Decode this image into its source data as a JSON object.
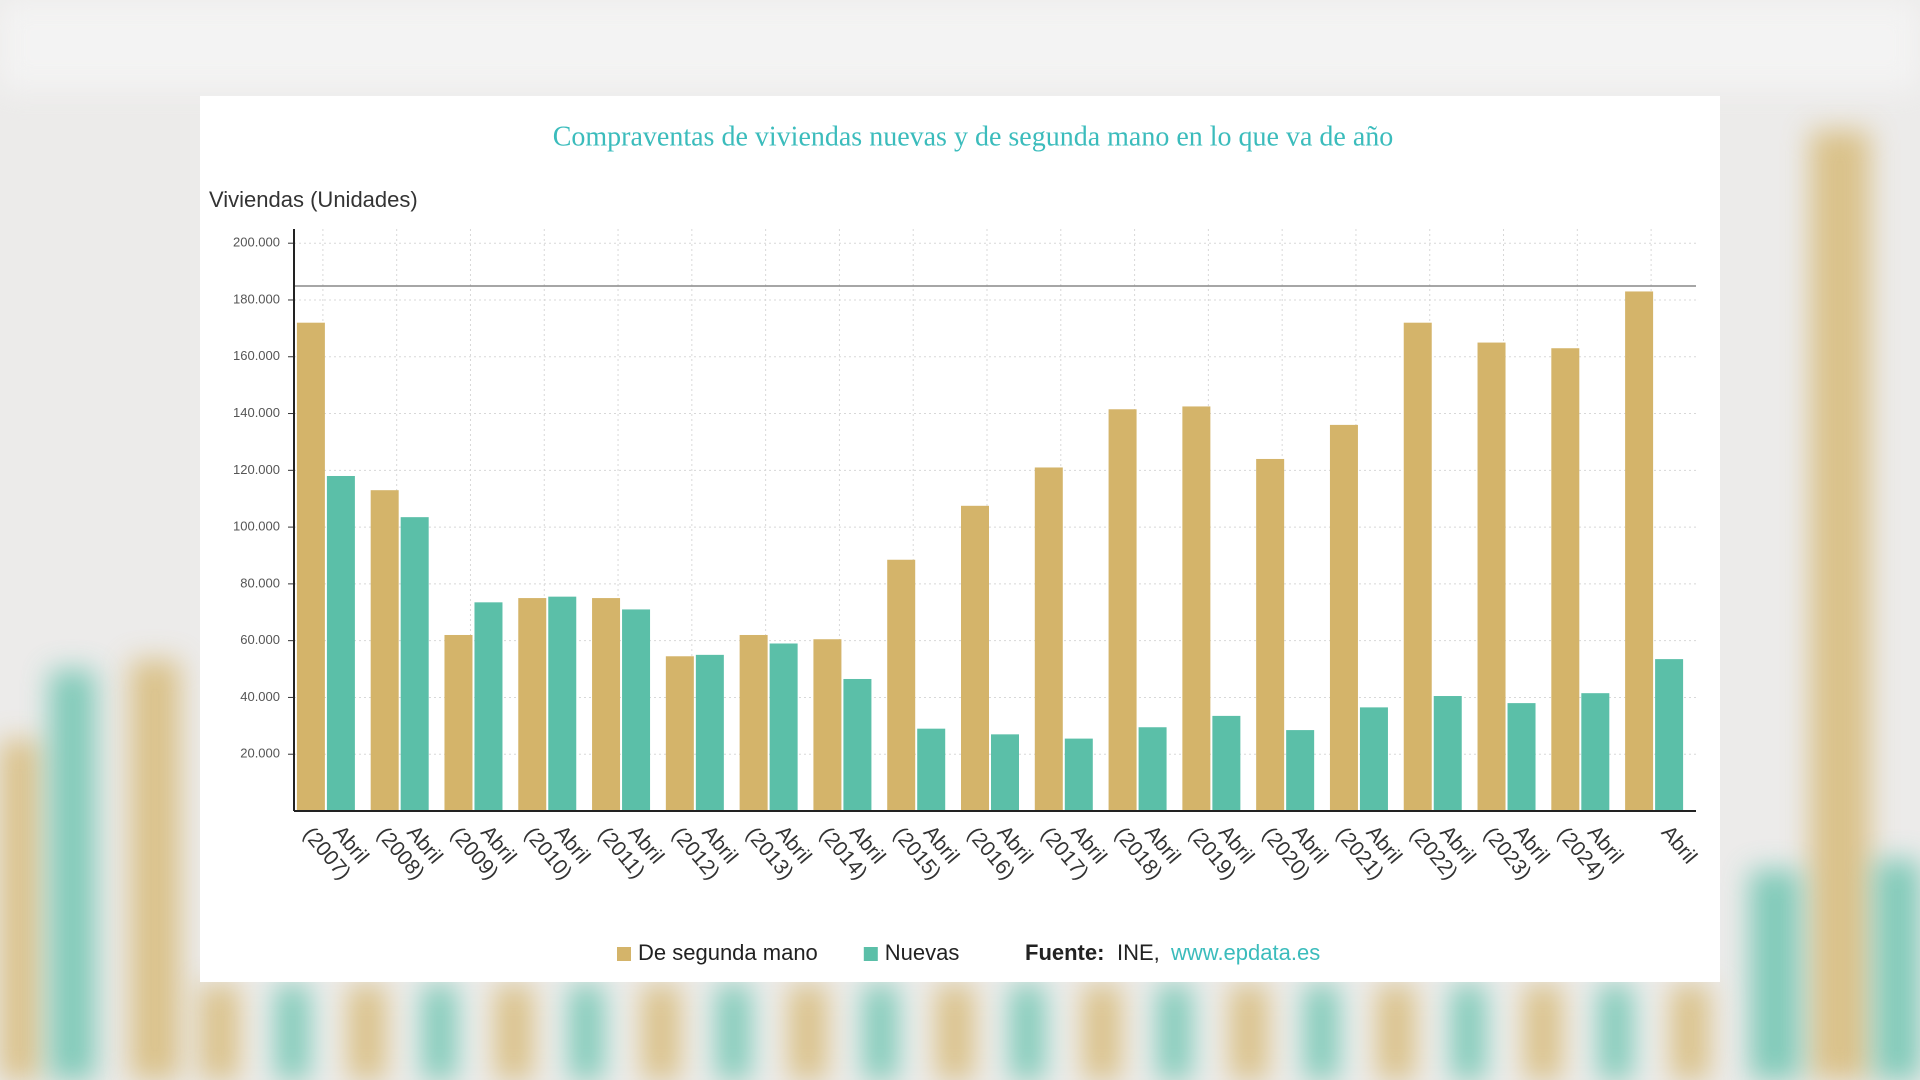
{
  "chart_data": {
    "type": "bar",
    "title": "Compraventas de viviendas nuevas y de segunda mano en lo que va de año",
    "y_label": "Viviendas (Unidades)",
    "categories": [
      "Abril (2007)",
      "Abril (2008)",
      "Abril (2009)",
      "Abril (2010)",
      "Abril (2011)",
      "Abril (2012)",
      "Abril (2013)",
      "Abril (2014)",
      "Abril (2015)",
      "Abril (2016)",
      "Abril (2017)",
      "Abril (2018)",
      "Abril (2019)",
      "Abril (2020)",
      "Abril (2021)",
      "Abril (2022)",
      "Abril (2023)",
      "Abril (2024)",
      "Abril"
    ],
    "series": [
      {
        "name": "De segunda mano",
        "color": "#d4b46a",
        "values": [
          172000,
          113000,
          62000,
          75000,
          75000,
          54500,
          62000,
          60500,
          88500,
          107500,
          121000,
          141500,
          142500,
          124000,
          136000,
          172000,
          165000,
          163000,
          183000
        ]
      },
      {
        "name": "Nuevas",
        "color": "#5bbfa8",
        "values": [
          118000,
          103500,
          73500,
          75500,
          71000,
          55000,
          59000,
          46500,
          29000,
          27000,
          25500,
          29500,
          33500,
          28500,
          36500,
          40500,
          38000,
          41500,
          53500
        ]
      }
    ],
    "ylim": [
      0,
      205000
    ],
    "yticks": [
      {
        "value": 20000,
        "label": "20.000"
      },
      {
        "value": 40000,
        "label": "40.000"
      },
      {
        "value": 60000,
        "label": "60.000"
      },
      {
        "value": 80000,
        "label": "80.000"
      },
      {
        "value": 100000,
        "label": "100.000"
      },
      {
        "value": 120000,
        "label": "120.000"
      },
      {
        "value": 140000,
        "label": "140.000"
      },
      {
        "value": 160000,
        "label": "160.000"
      },
      {
        "value": 180000,
        "label": "180.000"
      },
      {
        "value": 200000,
        "label": "200.000"
      }
    ],
    "grid": true,
    "legend": "bottom",
    "source": {
      "label": "Fuente:",
      "text": "INE,",
      "link": "www.epdata.es"
    }
  }
}
